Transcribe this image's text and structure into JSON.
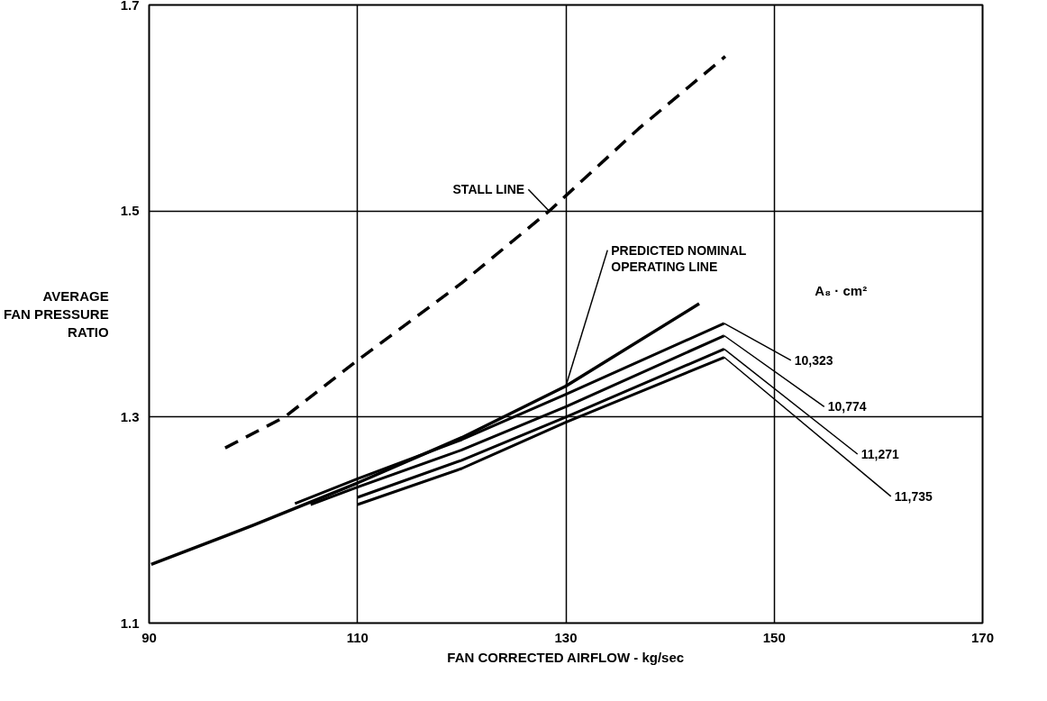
{
  "chart_data": {
    "type": "line",
    "xlabel": "FAN CORRECTED AIRFLOW - kg/sec",
    "ylabel": "AVERAGE\nFAN PRESSURE\nRATIO",
    "legend_title": "A₈ · cm²",
    "xlim": [
      90,
      170
    ],
    "xticks": [
      90,
      110,
      130,
      150,
      170
    ],
    "ylim": [
      1.1,
      1.7
    ],
    "yticks": [
      1.1,
      1.3,
      1.5,
      1.7
    ],
    "grid": true,
    "series": [
      {
        "name": "STALL LINE",
        "color": "#000000",
        "line_style": "dashed",
        "x": [
          97.3,
          103,
          110,
          120,
          128.4,
          137,
          145.3
        ],
        "values": [
          1.27,
          1.3,
          1.355,
          1.43,
          1.5,
          1.58,
          1.65
        ]
      },
      {
        "name": "PREDICTED NOMINAL\nOPERATING LINE",
        "color": "#000000",
        "x": [
          90.2,
          100,
          110,
          120,
          130,
          142.8
        ],
        "values": [
          1.157,
          1.195,
          1.236,
          1.28,
          1.33,
          1.41
        ]
      },
      {
        "name": "10,323",
        "color": "#000000",
        "x": [
          104,
          110,
          120,
          130,
          145.2
        ],
        "values": [
          1.216,
          1.24,
          1.278,
          1.322,
          1.391
        ]
      },
      {
        "name": "10,774",
        "color": "#000000",
        "x": [
          105.5,
          110,
          120,
          130,
          145.2
        ],
        "values": [
          1.215,
          1.232,
          1.268,
          1.31,
          1.379
        ]
      },
      {
        "name": "11,271",
        "color": "#000000",
        "x": [
          110,
          120,
          130,
          145.2
        ],
        "values": [
          1.222,
          1.258,
          1.3,
          1.366
        ]
      },
      {
        "name": "11,735",
        "color": "#000000",
        "x": [
          110,
          120,
          130,
          145.2
        ],
        "values": [
          1.215,
          1.25,
          1.295,
          1.358
        ]
      }
    ]
  }
}
